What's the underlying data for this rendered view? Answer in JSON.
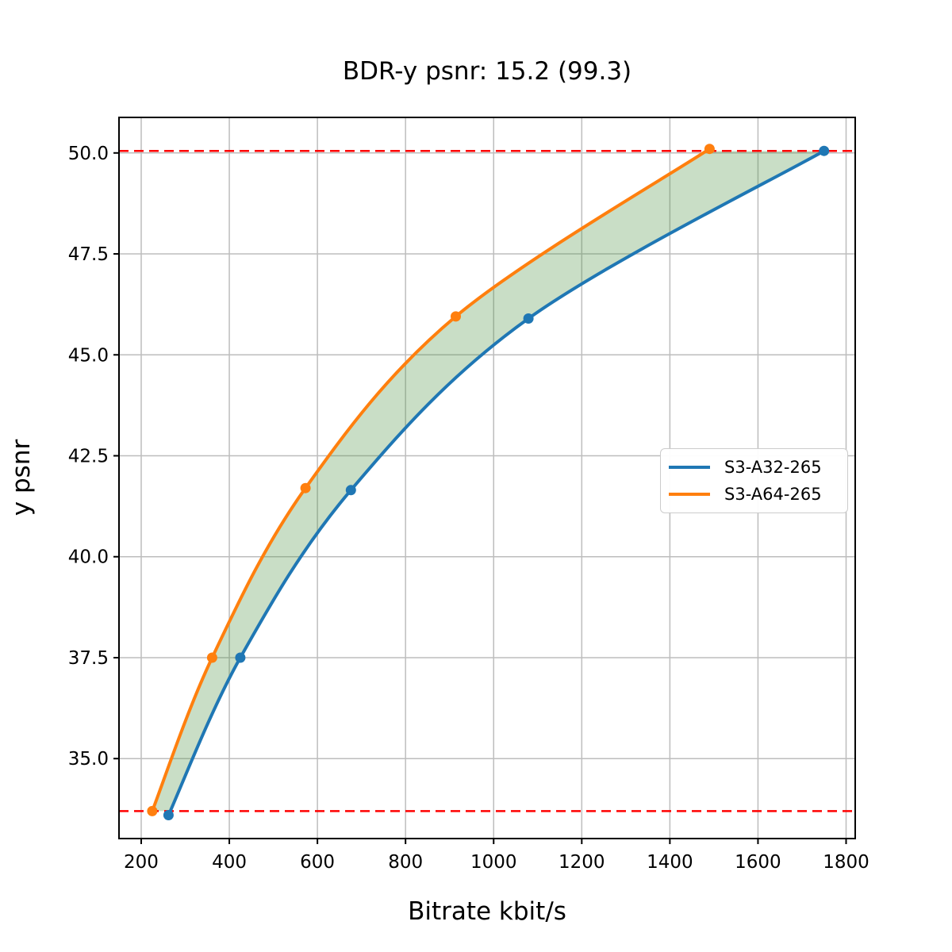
{
  "chart_data": {
    "type": "line",
    "title": "BDR-y psnr: 15.2 (99.3)",
    "xlabel": "Bitrate kbit/s",
    "ylabel": "y psnr",
    "xlim": [
      149.6,
      1820.7
    ],
    "ylim": [
      33.02,
      50.88
    ],
    "grid": true,
    "legend_position": "center-right",
    "x_ticks": {
      "values": [
        200,
        400,
        600,
        800,
        1000,
        1200,
        1400,
        1600,
        1800
      ],
      "labels": [
        "200",
        "400",
        "600",
        "800",
        "1000",
        "1200",
        "1400",
        "1600",
        "1800"
      ]
    },
    "y_ticks": {
      "values": [
        35.0,
        37.5,
        40.0,
        42.5,
        45.0,
        47.5,
        50.0
      ],
      "labels": [
        "35.0",
        "37.5",
        "40.0",
        "42.5",
        "45.0",
        "47.5",
        "50.0"
      ]
    },
    "series": [
      {
        "name": "S3-A32-265",
        "color": "#1f77b4",
        "points": [
          [
            262,
            33.6
          ],
          [
            425,
            37.5
          ],
          [
            676,
            41.65
          ],
          [
            1079,
            45.9
          ],
          [
            1750,
            50.05
          ]
        ]
      },
      {
        "name": "S3-A64-265",
        "color": "#ff7f0e",
        "points": [
          [
            225,
            33.7
          ],
          [
            361,
            37.5
          ],
          [
            573,
            41.7
          ],
          [
            914,
            45.95
          ],
          [
            1490,
            50.1
          ]
        ]
      }
    ],
    "hlines": {
      "values": [
        33.7,
        50.05
      ],
      "color": "#ff0000",
      "style": "dashed"
    },
    "fill_between": {
      "between": [
        "S3-A64-265",
        "S3-A32-265"
      ],
      "y_range": [
        33.7,
        50.05
      ],
      "color": "rgba(76,145,65,0.3)"
    },
    "colors": {
      "grid": "#bdbdbd",
      "spine": "#000000",
      "background": "#ffffff"
    }
  }
}
